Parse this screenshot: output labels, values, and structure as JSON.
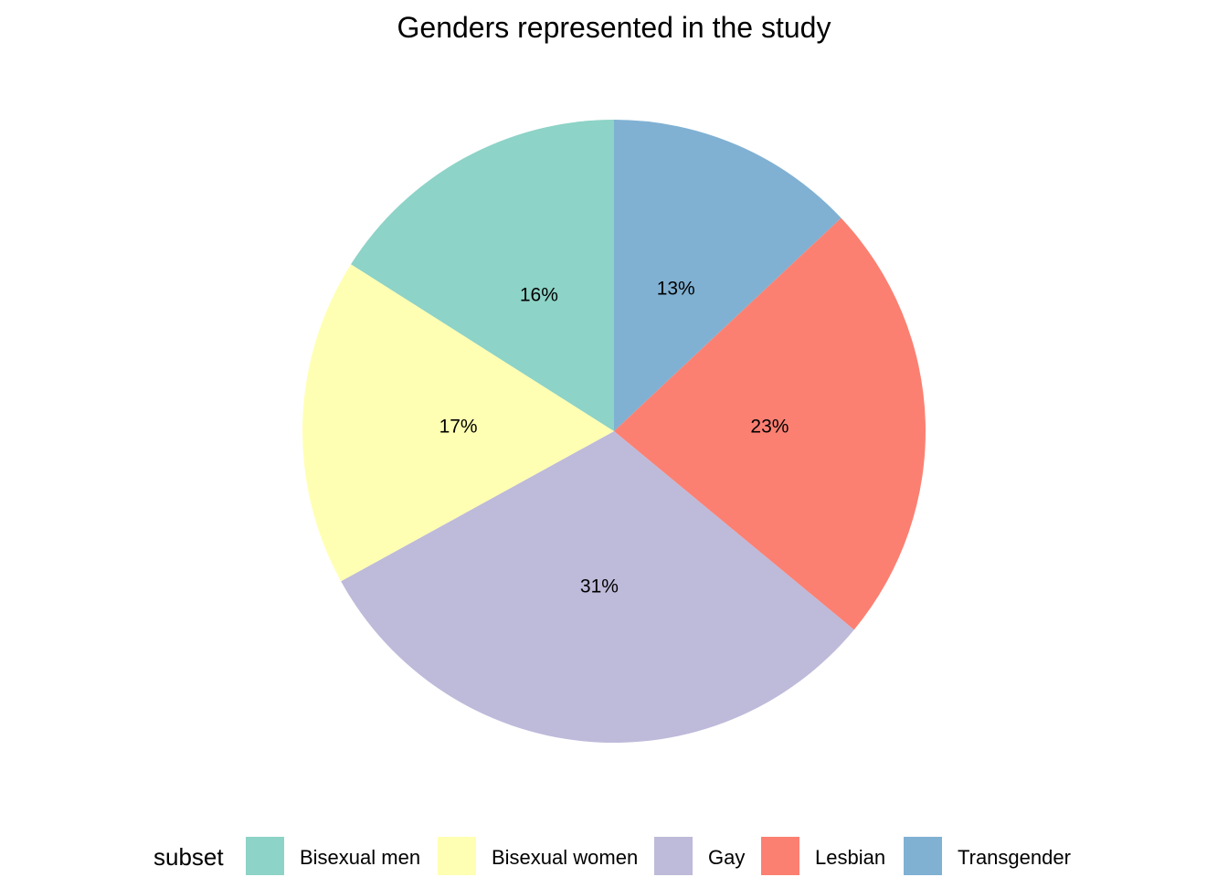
{
  "chart_data": {
    "type": "pie",
    "title": "Genders represented in the study",
    "legend_title": "subset",
    "legend_position": "bottom",
    "start_angle_deg": 0,
    "direction": "clockwise",
    "slices": [
      {
        "label": "Transgender",
        "value": 13,
        "text": "13%",
        "color": "#80B1D3"
      },
      {
        "label": "Lesbian",
        "value": 23,
        "text": "23%",
        "color": "#FB8072"
      },
      {
        "label": "Gay",
        "value": 31,
        "text": "31%",
        "color": "#BEBADA"
      },
      {
        "label": "Bisexual women",
        "value": 17,
        "text": "17%",
        "color": "#FFFFB3"
      },
      {
        "label": "Bisexual men",
        "value": 16,
        "text": "16%",
        "color": "#8DD3C7"
      }
    ],
    "legend_order": [
      "Bisexual men",
      "Bisexual women",
      "Gay",
      "Lesbian",
      "Transgender"
    ]
  }
}
